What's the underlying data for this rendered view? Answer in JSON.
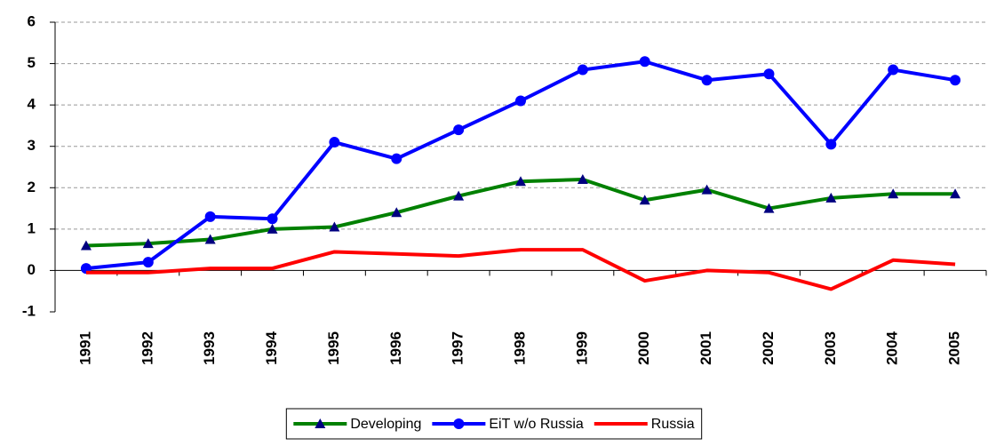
{
  "chart_data": {
    "type": "line",
    "categories": [
      "1991",
      "1992",
      "1993",
      "1994",
      "1995",
      "1996",
      "1997",
      "1998",
      "1999",
      "2000",
      "2001",
      "2002",
      "2003",
      "2004",
      "2005"
    ],
    "series": [
      {
        "name": "Developing",
        "color": "#008000",
        "marker": "triangle",
        "marker_color": "#000080",
        "values": [
          0.6,
          0.65,
          0.75,
          1.0,
          1.05,
          1.4,
          1.8,
          2.15,
          2.2,
          1.7,
          1.95,
          1.5,
          1.75,
          1.85,
          1.85
        ]
      },
      {
        "name": "EiT w/o Russia",
        "color": "#0000ff",
        "marker": "circle",
        "marker_color": "#0000ff",
        "values": [
          0.05,
          0.2,
          1.3,
          1.25,
          3.1,
          2.7,
          3.4,
          4.1,
          4.85,
          5.05,
          4.6,
          4.75,
          3.05,
          4.85,
          4.6
        ]
      },
      {
        "name": "Russia",
        "color": "#ff0000",
        "marker": null,
        "marker_color": "#ff0000",
        "values": [
          -0.05,
          -0.05,
          0.05,
          0.05,
          0.45,
          0.4,
          0.35,
          0.5,
          0.5,
          -0.25,
          0.0,
          -0.05,
          -0.45,
          0.25,
          0.15
        ]
      }
    ],
    "ylim": [
      -1,
      6
    ],
    "yticks": [
      -1,
      0,
      1,
      2,
      3,
      4,
      5,
      6
    ],
    "grid": true,
    "legend": "bottom"
  }
}
